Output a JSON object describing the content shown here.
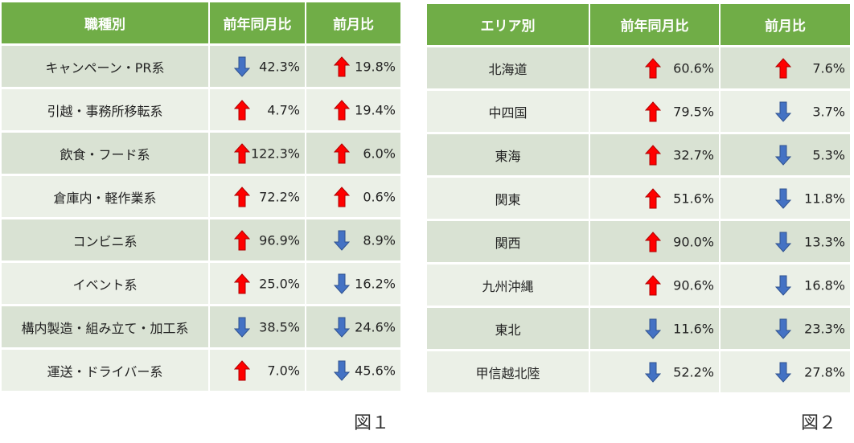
{
  "colors": {
    "header_bg": "#70ad47",
    "header_text": "#ffffff",
    "row_odd": "#d9e2d3",
    "row_even": "#ebf0e7",
    "arrow_up": "#ff0000",
    "arrow_down": "#4472c4"
  },
  "table1": {
    "headers": [
      "職種別",
      "前年同月比",
      "前月比"
    ],
    "rows": [
      {
        "label": "キャンペーン・PR系",
        "yoy": "42.3%",
        "yoy_dir": "down",
        "mom": "19.8%",
        "mom_dir": "up"
      },
      {
        "label": "引越・事務所移転系",
        "yoy": "4.7%",
        "yoy_dir": "up",
        "mom": "19.4%",
        "mom_dir": "up"
      },
      {
        "label": "飲食・フード系",
        "yoy": "122.3%",
        "yoy_dir": "up",
        "mom": "6.0%",
        "mom_dir": "up"
      },
      {
        "label": "倉庫内・軽作業系",
        "yoy": "72.2%",
        "yoy_dir": "up",
        "mom": "0.6%",
        "mom_dir": "up"
      },
      {
        "label": "コンビニ系",
        "yoy": "96.9%",
        "yoy_dir": "up",
        "mom": "8.9%",
        "mom_dir": "down"
      },
      {
        "label": "イベント系",
        "yoy": "25.0%",
        "yoy_dir": "up",
        "mom": "16.2%",
        "mom_dir": "down"
      },
      {
        "label": "構内製造・組み立て・加工系",
        "yoy": "38.5%",
        "yoy_dir": "down",
        "mom": "24.6%",
        "mom_dir": "down"
      },
      {
        "label": "運送・ドライバー系",
        "yoy": "7.0%",
        "yoy_dir": "up",
        "mom": "45.6%",
        "mom_dir": "down"
      }
    ],
    "caption": "図１"
  },
  "table2": {
    "headers": [
      "エリア別",
      "前年同月比",
      "前月比"
    ],
    "rows": [
      {
        "label": "北海道",
        "yoy": "60.6%",
        "yoy_dir": "up",
        "mom": "7.6%",
        "mom_dir": "up"
      },
      {
        "label": "中四国",
        "yoy": "79.5%",
        "yoy_dir": "up",
        "mom": "3.7%",
        "mom_dir": "down"
      },
      {
        "label": "東海",
        "yoy": "32.7%",
        "yoy_dir": "up",
        "mom": "5.3%",
        "mom_dir": "down"
      },
      {
        "label": "関東",
        "yoy": "51.6%",
        "yoy_dir": "up",
        "mom": "11.8%",
        "mom_dir": "down"
      },
      {
        "label": "関西",
        "yoy": "90.0%",
        "yoy_dir": "up",
        "mom": "13.3%",
        "mom_dir": "down"
      },
      {
        "label": "九州沖縄",
        "yoy": "90.6%",
        "yoy_dir": "up",
        "mom": "16.8%",
        "mom_dir": "down"
      },
      {
        "label": "東北",
        "yoy": "11.6%",
        "yoy_dir": "down",
        "mom": "23.3%",
        "mom_dir": "down"
      },
      {
        "label": "甲信越北陸",
        "yoy": "52.2%",
        "yoy_dir": "down",
        "mom": "27.8%",
        "mom_dir": "down"
      }
    ],
    "caption": "図２"
  }
}
